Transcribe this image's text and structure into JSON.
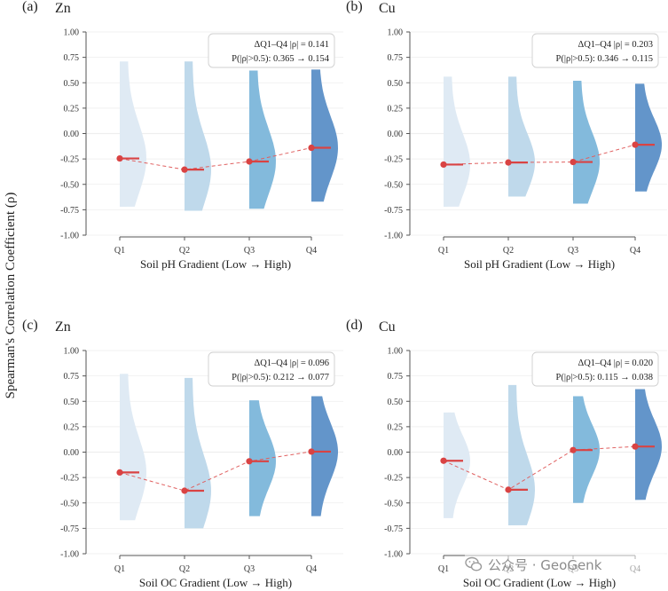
{
  "figure": {
    "ylabel": "Spearman's Correlation Coefficient (ρ)",
    "colors": {
      "violins": [
        "#dde9f3",
        "#bcd7ea",
        "#7cb6da",
        "#5b8fc7"
      ],
      "mean_marker": "#d94343",
      "mean_line": "#e06060",
      "grid": "#eeeeee",
      "axis": "#555555"
    },
    "watermark": "公众号 · GeoGenk",
    "watermark_icon": "wechat-icon"
  },
  "chart_data": [
    {
      "type": "violin",
      "panel_label": "(a)",
      "title": "Zn",
      "xlabel": "Soil pH Gradient (Low → High)",
      "categories": [
        "Q1",
        "Q2",
        "Q3",
        "Q4"
      ],
      "ylim": [
        -1.0,
        1.0
      ],
      "yticks": [
        "1.00",
        "0.75",
        "0.50",
        "0.25",
        "0.00",
        "-0.25",
        "-0.50",
        "-0.75",
        "-1.00"
      ],
      "means": [
        -0.245,
        -0.355,
        -0.275,
        -0.14
      ],
      "ranges": [
        [
          -0.72,
          0.71
        ],
        [
          -0.76,
          0.71
        ],
        [
          -0.74,
          0.62
        ],
        [
          -0.67,
          0.63
        ]
      ],
      "annotation": [
        "ΔQ1–Q4 |ρ| = 0.141",
        "P(|ρ|>0.5): 0.365 → 0.154"
      ]
    },
    {
      "type": "violin",
      "panel_label": "(b)",
      "title": "Cu",
      "xlabel": "Soil pH Gradient (Low → High)",
      "categories": [
        "Q1",
        "Q2",
        "Q3",
        "Q4"
      ],
      "ylim": [
        -1.0,
        1.0
      ],
      "yticks": [
        "1.00",
        "0.75",
        "0.50",
        "0.25",
        "0.00",
        "-0.25",
        "-0.50",
        "-0.75",
        "-1.00"
      ],
      "means": [
        -0.305,
        -0.285,
        -0.28,
        -0.11
      ],
      "ranges": [
        [
          -0.72,
          0.56
        ],
        [
          -0.62,
          0.56
        ],
        [
          -0.69,
          0.52
        ],
        [
          -0.57,
          0.49
        ]
      ],
      "annotation": [
        "ΔQ1–Q4 |ρ| = 0.203",
        "P(|ρ|>0.5): 0.346 → 0.115"
      ]
    },
    {
      "type": "violin",
      "panel_label": "(c)",
      "title": "Zn",
      "xlabel": "Soil OC Gradient (Low → High)",
      "categories": [
        "Q1",
        "Q2",
        "Q3",
        "Q4"
      ],
      "ylim": [
        -1.0,
        1.0
      ],
      "yticks": [
        "1.00",
        "0.75",
        "0.50",
        "0.25",
        "0.00",
        "-0.25",
        "-0.50",
        "-0.75",
        "-1.00"
      ],
      "means": [
        -0.2,
        -0.38,
        -0.09,
        0.005
      ],
      "ranges": [
        [
          -0.67,
          0.77
        ],
        [
          -0.75,
          0.73
        ],
        [
          -0.63,
          0.51
        ],
        [
          -0.63,
          0.55
        ]
      ],
      "annotation": [
        "ΔQ1–Q4 |ρ| = 0.096",
        "P(|ρ|>0.5): 0.212 → 0.077"
      ]
    },
    {
      "type": "violin",
      "panel_label": "(d)",
      "title": "Cu",
      "xlabel": "Soil OC Gradient (Low → High)",
      "categories": [
        "Q1",
        "Q2",
        "Q3",
        "Q4"
      ],
      "ylim": [
        -1.0,
        1.0
      ],
      "yticks": [
        "1.00",
        "0.75",
        "0.50",
        "0.25",
        "0.00",
        "-0.25",
        "-0.50",
        "-0.75",
        "-1.00"
      ],
      "means": [
        -0.085,
        -0.37,
        0.02,
        0.055
      ],
      "ranges": [
        [
          -0.65,
          0.39
        ],
        [
          -0.72,
          0.66
        ],
        [
          -0.5,
          0.55
        ],
        [
          -0.47,
          0.62
        ]
      ],
      "annotation": [
        "ΔQ1–Q4 |ρ| = 0.020",
        "P(|ρ|>0.5): 0.115 → 0.038"
      ]
    }
  ]
}
